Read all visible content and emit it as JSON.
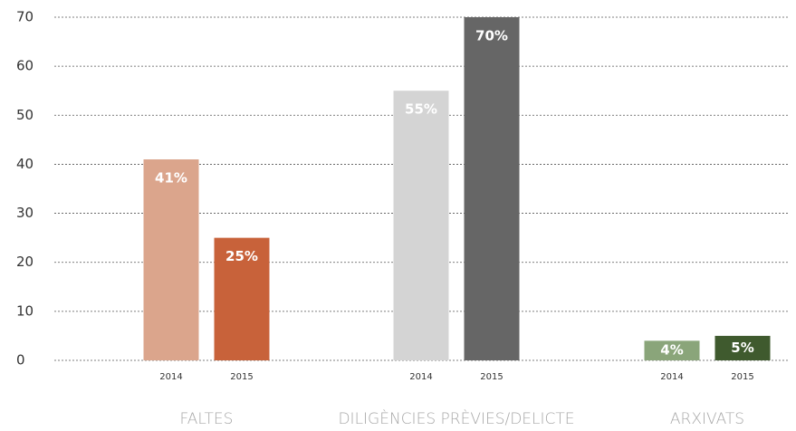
{
  "chart_data": {
    "type": "bar",
    "categories": [
      "FALTES",
      "DILIGÈNCIES PRÈVIES/DELICTE",
      "ARXIVATS"
    ],
    "series": [
      {
        "name": "2014",
        "colors": [
          "#dba58c",
          "#d4d4d4",
          "#8aa57a"
        ],
        "values": [
          41,
          55,
          4
        ],
        "value_labels": [
          "41%",
          "55%",
          "4%"
        ]
      },
      {
        "name": "2015",
        "colors": [
          "#c8623a",
          "#666666",
          "#3f5a2e"
        ],
        "values": [
          25,
          70,
          5
        ],
        "value_labels": [
          "25%",
          "70%",
          "5%"
        ]
      }
    ],
    "ylim": [
      0,
      70
    ],
    "yticks": [
      0,
      10,
      20,
      30,
      40,
      50,
      60,
      70
    ],
    "grid": true
  }
}
